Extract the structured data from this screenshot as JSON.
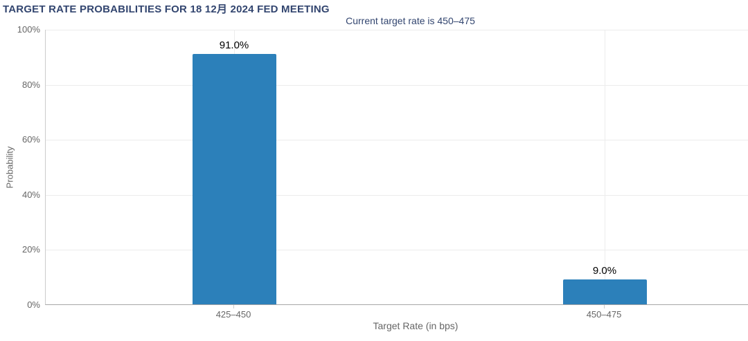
{
  "chart_data": {
    "type": "bar",
    "title": "TARGET RATE PROBABILITIES FOR 18 12月 2024 FED MEETING",
    "subtitle": "Current target rate is 450–475",
    "xlabel": "Target Rate (in bps)",
    "ylabel": "Probability",
    "categories": [
      "425–450",
      "450–475"
    ],
    "values": [
      91.0,
      9.0
    ],
    "data_labels": [
      "91.0%",
      "9.0%"
    ],
    "y_ticks": [
      "0%",
      "20%",
      "40%",
      "60%",
      "80%",
      "100%"
    ],
    "ylim": [
      0,
      100
    ],
    "grid": true,
    "legend": "none",
    "colors": {
      "bar": "#2c80ba",
      "title": "#32456f",
      "subtitle": "#32456f",
      "axis_text": "#666666",
      "data_label": "#000000",
      "gridline": "#ececec",
      "axis_line": "#a6a6a6",
      "y_axis_line": "#cccccc"
    }
  }
}
